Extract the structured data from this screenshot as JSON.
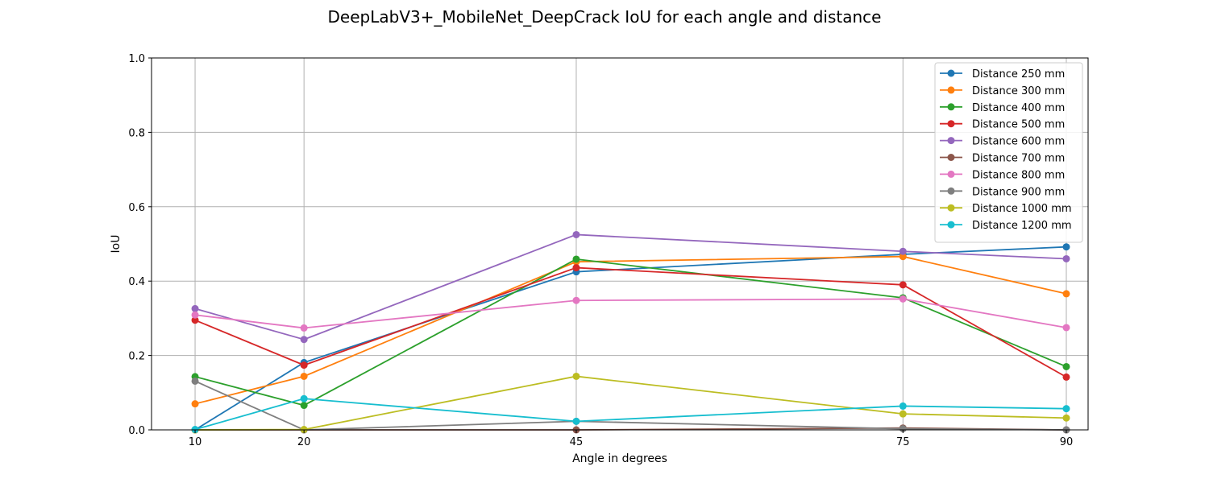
{
  "chart_data": {
    "type": "line",
    "title": "DeepLabV3+_MobileNet_DeepCrack IoU for each angle and distance",
    "xlabel": "Angle in degrees",
    "ylabel": "IoU",
    "x": [
      10,
      20,
      45,
      75,
      90
    ],
    "xticks": [
      "10",
      "20",
      "45",
      "75",
      "90"
    ],
    "xlim": [
      6,
      92
    ],
    "ylim": [
      0,
      1
    ],
    "yticks": [
      "0.0",
      "0.2",
      "0.4",
      "0.6",
      "0.8",
      "1.0"
    ],
    "grid": true,
    "legend_position": "top-right",
    "series": [
      {
        "name": "Distance 250 mm",
        "color": "#1f77b4",
        "values": [
          0.0,
          0.181,
          0.425,
          0.472,
          0.492
        ]
      },
      {
        "name": "Distance 300 mm",
        "color": "#ff7f0e",
        "values": [
          0.07,
          0.144,
          0.452,
          0.466,
          0.366
        ]
      },
      {
        "name": "Distance 400 mm",
        "color": "#2ca02c",
        "values": [
          0.143,
          0.066,
          0.459,
          0.355,
          0.17
        ]
      },
      {
        "name": "Distance 500 mm",
        "color": "#d62728",
        "values": [
          0.295,
          0.174,
          0.436,
          0.39,
          0.142
        ]
      },
      {
        "name": "Distance 600 mm",
        "color": "#9467bd",
        "values": [
          0.326,
          0.243,
          0.525,
          0.48,
          0.46
        ]
      },
      {
        "name": "Distance 700 mm",
        "color": "#8c564b",
        "values": [
          0.0,
          0.0,
          0.0,
          0.005,
          0.0
        ]
      },
      {
        "name": "Distance 800 mm",
        "color": "#e377c2",
        "values": [
          0.309,
          0.274,
          0.348,
          0.352,
          0.275
        ]
      },
      {
        "name": "Distance 900 mm",
        "color": "#7f7f7f",
        "values": [
          0.131,
          0.0,
          0.023,
          0.003,
          0.0
        ]
      },
      {
        "name": "Distance 1000 mm",
        "color": "#bcbd22",
        "values": [
          0.0,
          0.001,
          0.144,
          0.043,
          0.032
        ]
      },
      {
        "name": "Distance 1200 mm",
        "color": "#17becf",
        "values": [
          0.001,
          0.084,
          0.023,
          0.064,
          0.057
        ]
      }
    ]
  }
}
